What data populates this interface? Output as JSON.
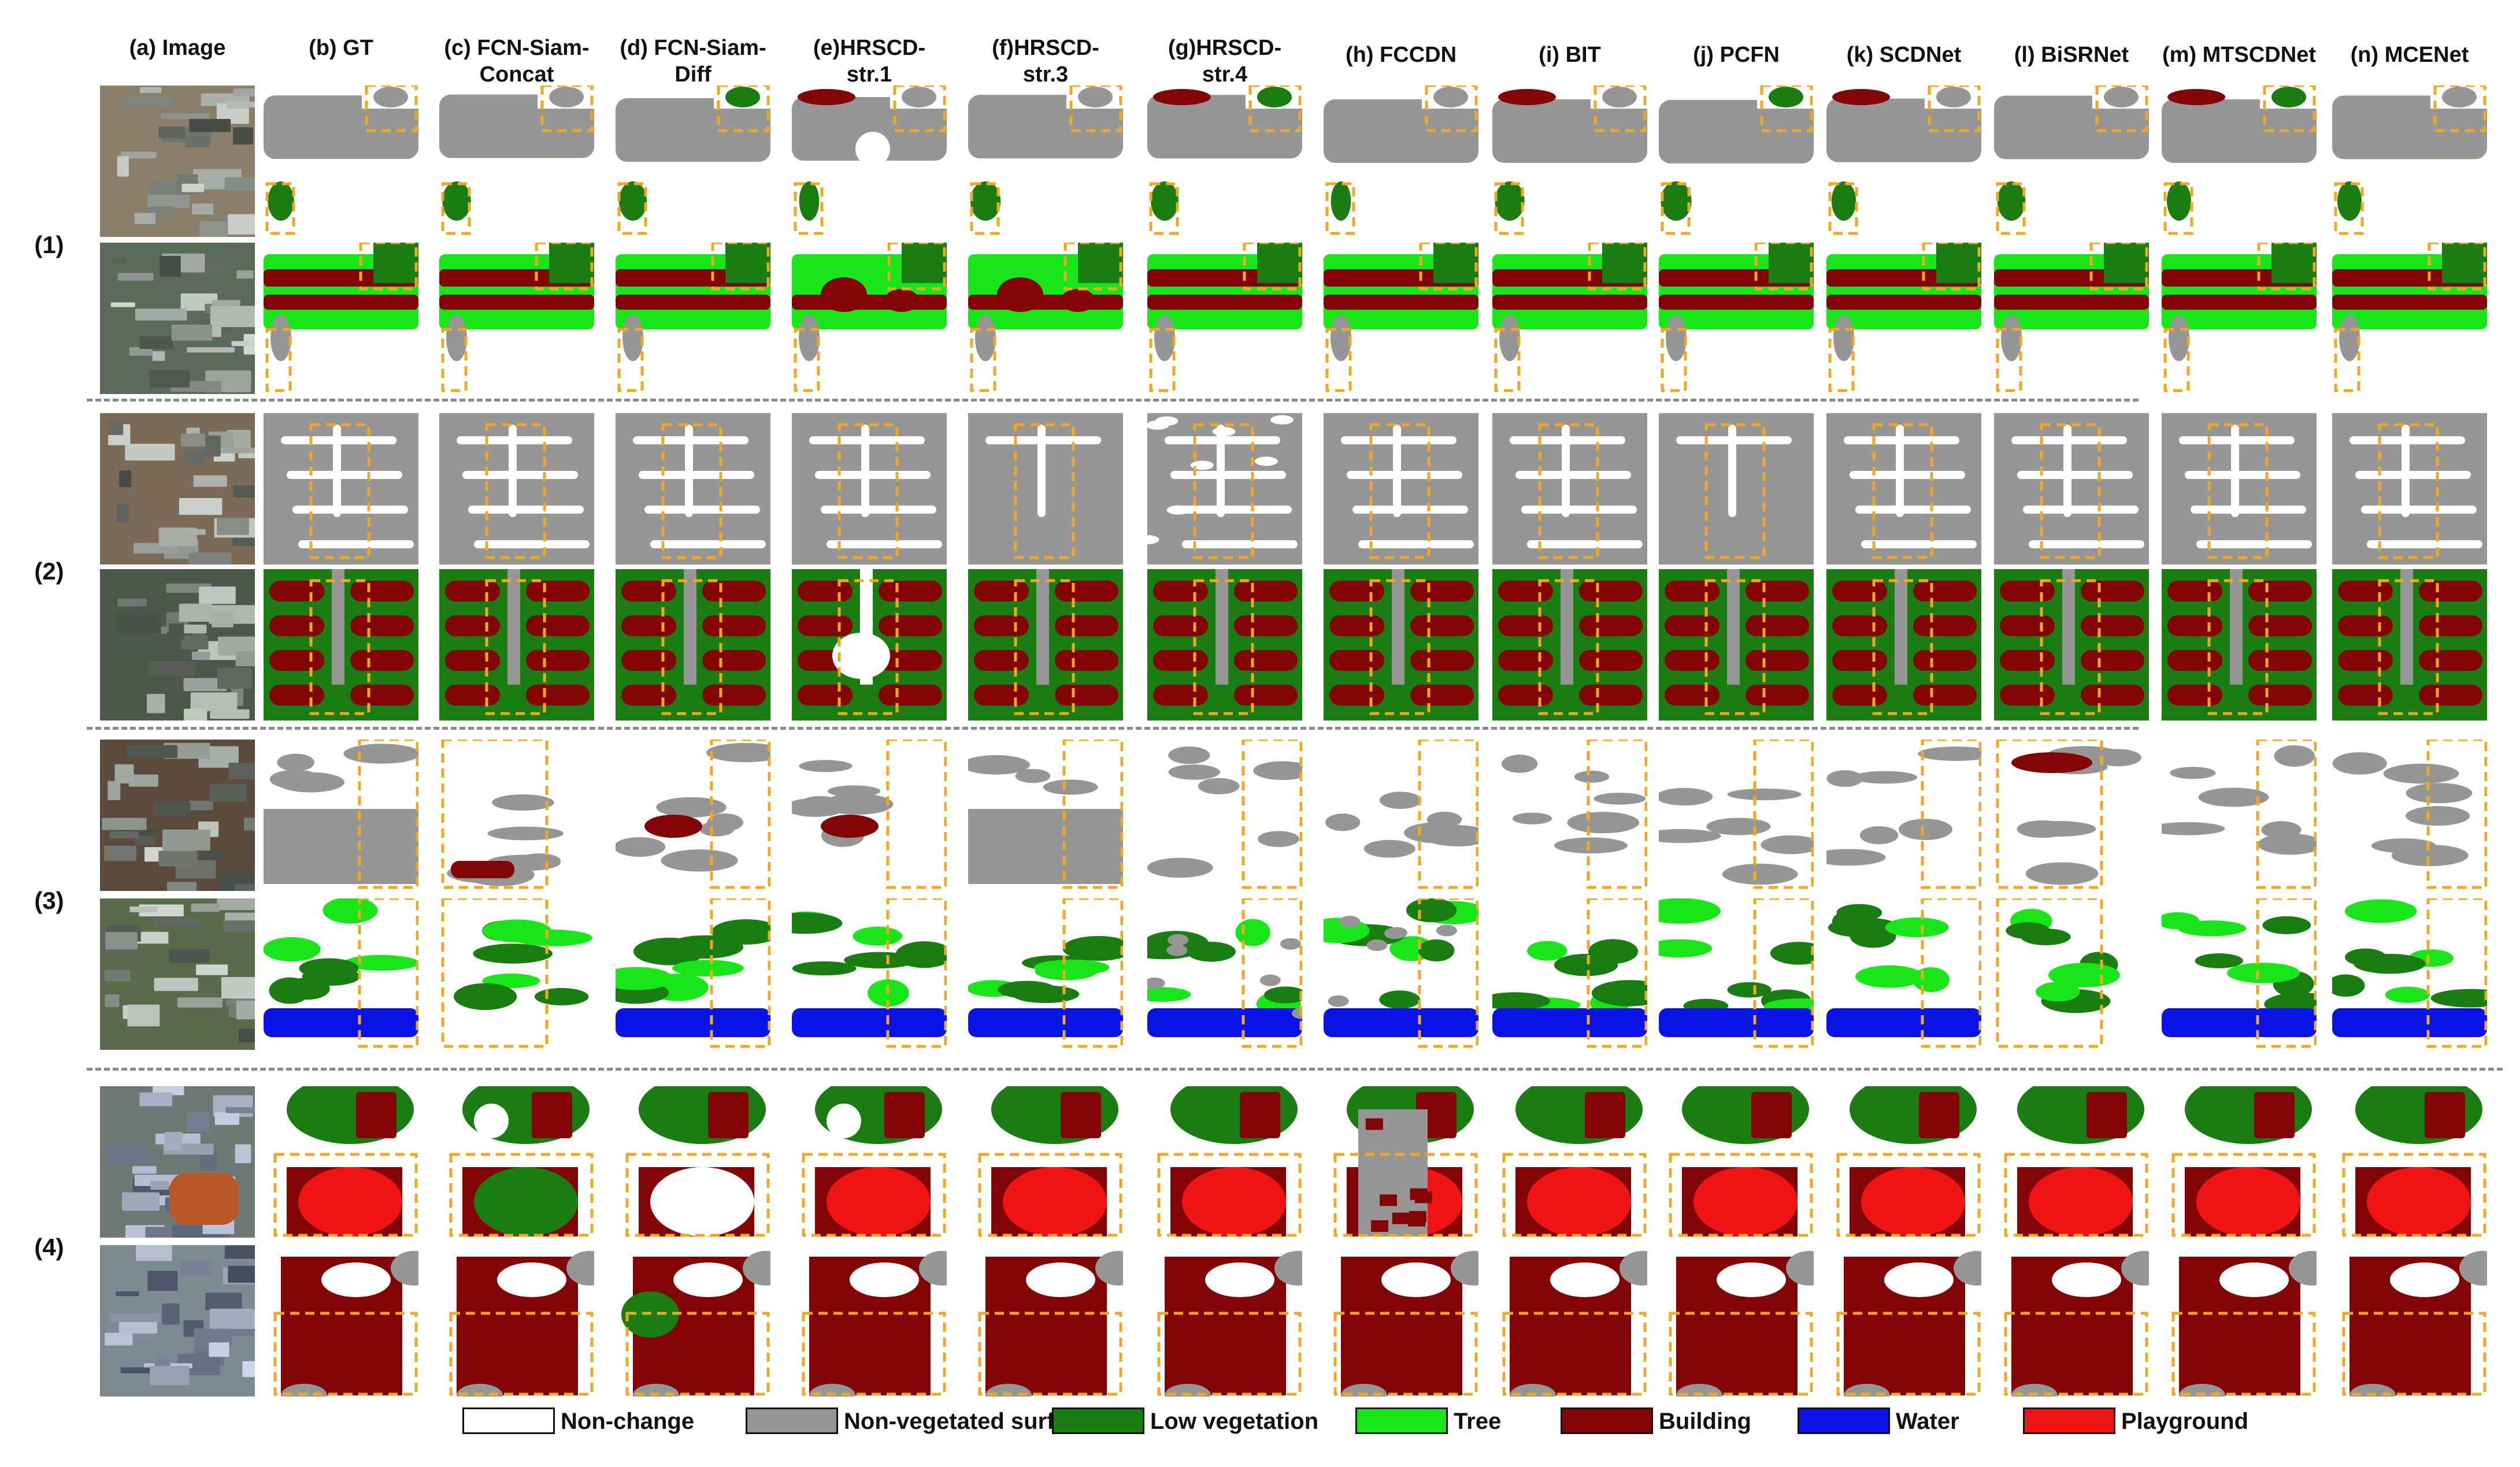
{
  "figure": {
    "columns": [
      {
        "id": "a",
        "label": "(a) Image"
      },
      {
        "id": "b",
        "label": "(b) GT"
      },
      {
        "id": "c",
        "label": "(c) FCN-Siam-\nConcat"
      },
      {
        "id": "d",
        "label": "(d) FCN-Siam-\nDiff"
      },
      {
        "id": "e",
        "label": "(e)HRSCD-\nstr.1"
      },
      {
        "id": "f",
        "label": "(f)HRSCD-\nstr.3"
      },
      {
        "id": "g",
        "label": "(g)HRSCD-\nstr.4"
      },
      {
        "id": "h",
        "label": "(h) FCCDN"
      },
      {
        "id": "i",
        "label": "(i) BIT"
      },
      {
        "id": "j",
        "label": "(j) PCFN"
      },
      {
        "id": "k",
        "label": "(k) SCDNet"
      },
      {
        "id": "l",
        "label": "(l) BiSRNet"
      },
      {
        "id": "m",
        "label": "(m) MTSCDNet"
      },
      {
        "id": "n",
        "label": "(n) MCENet"
      }
    ],
    "rows": [
      {
        "label": "(1)"
      },
      {
        "label": "(2)"
      },
      {
        "label": "(3)"
      },
      {
        "label": "(4)"
      }
    ],
    "legend": [
      {
        "label": "Non-change",
        "color": "#ffffff"
      },
      {
        "label": "Non-vegetated surface",
        "color": "#969696"
      },
      {
        "label": "Low vegetation",
        "color": "#1a7d12"
      },
      {
        "label": "Tree",
        "color": "#19e619"
      },
      {
        "label": "Building",
        "color": "#820404"
      },
      {
        "label": "Water",
        "color": "#0a14e6"
      },
      {
        "label": "Playground",
        "color": "#f01414"
      }
    ],
    "highlight_box_color": "#f0a81e"
  }
}
